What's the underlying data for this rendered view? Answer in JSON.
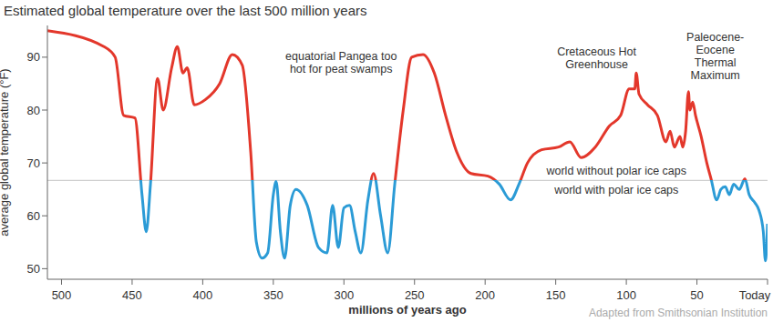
{
  "chart_data": {
    "type": "line",
    "title": "Estimated global temperature over the last 500 million years",
    "x_label": "millions of years ago",
    "y_label": "average global temperature (°F)",
    "source": "Adapted from Smithsonian Institution",
    "x": [
      510,
      470,
      462,
      456,
      448,
      443,
      440,
      437,
      432,
      428,
      422,
      418,
      414,
      411,
      406,
      398,
      388,
      379,
      372,
      366,
      362,
      358,
      354,
      350,
      348,
      345,
      342,
      338,
      334,
      326,
      318,
      312,
      308,
      304,
      300,
      296,
      292,
      288,
      283,
      279,
      274,
      269,
      264,
      258,
      252,
      244,
      236,
      228,
      220,
      210,
      198,
      190,
      182,
      176,
      170,
      160,
      148,
      140,
      132,
      122,
      112,
      104,
      98,
      94,
      93,
      91,
      85,
      78,
      72,
      69,
      66,
      62,
      60,
      58,
      56,
      55,
      53,
      51,
      47,
      43,
      40,
      36,
      33,
      30,
      27,
      24,
      20,
      16,
      13,
      9,
      6,
      3,
      1.5,
      0
    ],
    "values": [
      95,
      92,
      90,
      79,
      78.5,
      64,
      57,
      66,
      86,
      80,
      88,
      92,
      87,
      88,
      81,
      82,
      85,
      90.5,
      88.5,
      72,
      55,
      52,
      53,
      64,
      66.5,
      57,
      52,
      62,
      65,
      62,
      54,
      53,
      62,
      54,
      61.5,
      62,
      57,
      53,
      63,
      68,
      60,
      53,
      66,
      80,
      90,
      90.5,
      87,
      79,
      72,
      68,
      67.5,
      66,
      63,
      66,
      70,
      72.5,
      73,
      74,
      71,
      73,
      77,
      79,
      84,
      84,
      87,
      83,
      81,
      79,
      74,
      76,
      73,
      75,
      73,
      76,
      83.5,
      80,
      81.5,
      79,
      75,
      70,
      67,
      63,
      65,
      65.5,
      64,
      66,
      65,
      67,
      64,
      62.5,
      61,
      57,
      51.5,
      58.5
    ],
    "colors": [
      "#e3372b",
      "#2b9bd6"
    ],
    "xlim": [
      510,
      0
    ],
    "xticks": [
      500,
      450,
      400,
      350,
      300,
      250,
      200,
      150,
      100,
      50,
      {
        "value": 0,
        "label": "Today"
      }
    ],
    "ylim": [
      48,
      96
    ],
    "yticks": [
      50,
      60,
      70,
      80,
      90
    ],
    "grid": false,
    "reference_line": {
      "y": 66.7,
      "color": "#c4c4c4"
    },
    "annotations": [
      {
        "text": "equatorial Pangea too\nhot for peat swamps",
        "x": 302,
        "y": 89.4
      },
      {
        "text": "Cretaceous Hot\nGreenhouse",
        "x": 121,
        "y": 90.3
      },
      {
        "text": "Paleocene-\nEocene\nThermal\nMaximum",
        "x": 37,
        "y": 93
      },
      {
        "text": "world without polar ice caps",
        "x": 107,
        "y": 67.7
      },
      {
        "text": "world with polar ice caps",
        "x": 107,
        "y": 64.1
      }
    ]
  }
}
